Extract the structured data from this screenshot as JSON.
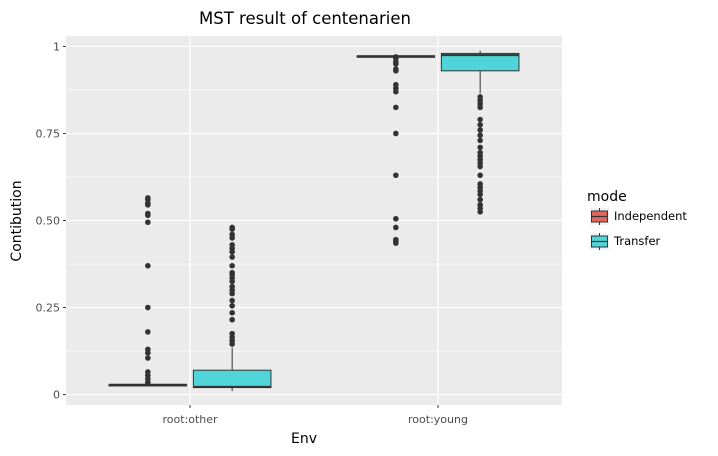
{
  "chart_data": {
    "type": "box",
    "title": "MST result of centenarien",
    "xlabel": "Env",
    "ylabel": "Contibution",
    "categories": [
      "root:other",
      "root:young"
    ],
    "ylim": [
      -0.03,
      1.03
    ],
    "yticks": [
      0,
      0.25,
      0.5,
      0.75,
      1
    ],
    "ytick_labels": [
      "0",
      "0.25",
      "0.50",
      "0.75",
      "1"
    ],
    "grid": true,
    "legend": {
      "title": "mode",
      "position": "right"
    },
    "series": [
      {
        "name": "Independent",
        "color": "#e0675d",
        "boxes": [
          {
            "category": "root:other",
            "whisker_low": 0.027,
            "q1": 0.027,
            "median": 0.028,
            "q3": 0.029,
            "whisker_high": 0.03,
            "outliers": [
              0.565,
              0.56,
              0.55,
              0.545,
              0.52,
              0.515,
              0.495,
              0.37,
              0.25,
              0.18,
              0.13,
              0.12,
              0.105,
              0.065,
              0.055,
              0.045,
              0.035
            ]
          },
          {
            "category": "root:young",
            "whisker_low": 0.97,
            "q1": 0.971,
            "median": 0.972,
            "q3": 0.973,
            "whisker_high": 0.974,
            "outliers": [
              0.97,
              0.965,
              0.955,
              0.95,
              0.935,
              0.93,
              0.89,
              0.88,
              0.87,
              0.825,
              0.75,
              0.63,
              0.505,
              0.48,
              0.445,
              0.44,
              0.435
            ]
          }
        ]
      },
      {
        "name": "Transfer",
        "color": "#4fd4d9",
        "boxes": [
          {
            "category": "root:other",
            "whisker_low": 0.01,
            "q1": 0.02,
            "median": 0.022,
            "q3": 0.07,
            "whisker_high": 0.135,
            "outliers": [
              0.48,
              0.475,
              0.46,
              0.45,
              0.43,
              0.42,
              0.41,
              0.395,
              0.37,
              0.35,
              0.345,
              0.335,
              0.325,
              0.31,
              0.3,
              0.29,
              0.27,
              0.255,
              0.235,
              0.215,
              0.175,
              0.165,
              0.155,
              0.145
            ]
          },
          {
            "category": "root:young",
            "whisker_low": 0.865,
            "q1": 0.93,
            "median": 0.975,
            "q3": 0.98,
            "whisker_high": 0.988,
            "outliers": [
              0.855,
              0.845,
              0.835,
              0.825,
              0.79,
              0.775,
              0.76,
              0.745,
              0.73,
              0.71,
              0.695,
              0.685,
              0.675,
              0.665,
              0.655,
              0.63,
              0.605,
              0.595,
              0.585,
              0.575,
              0.56,
              0.545,
              0.535,
              0.525
            ]
          }
        ]
      }
    ]
  }
}
